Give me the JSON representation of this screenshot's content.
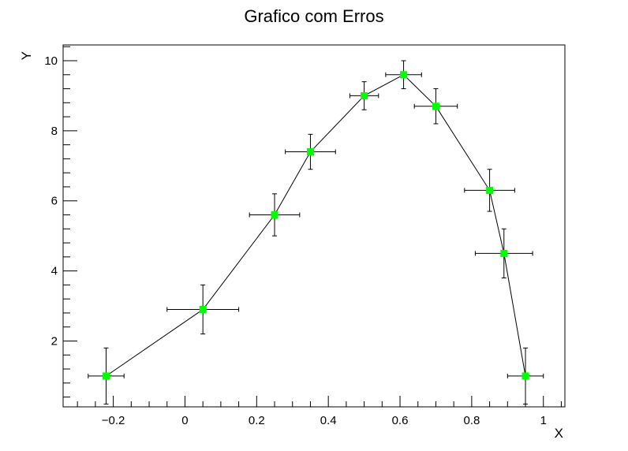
{
  "chart_data": {
    "type": "scatter",
    "title": "Grafico com Erros",
    "xlabel": "X",
    "ylabel": "Y",
    "xlim": [
      -0.34,
      1.06
    ],
    "ylim": [
      0.12,
      10.45
    ],
    "grid": false,
    "connected": true,
    "marker_color": "#00ff00",
    "line_color": "#000000",
    "x_ticks": [
      {
        "value": -0.2,
        "label": "−0.2"
      },
      {
        "value": 0,
        "label": "0"
      },
      {
        "value": 0.2,
        "label": "0.2"
      },
      {
        "value": 0.4,
        "label": "0.4"
      },
      {
        "value": 0.6,
        "label": "0.6"
      },
      {
        "value": 0.8,
        "label": "0.8"
      },
      {
        "value": 1,
        "label": "1"
      }
    ],
    "y_ticks": [
      {
        "value": 2,
        "label": "2"
      },
      {
        "value": 4,
        "label": "4"
      },
      {
        "value": 6,
        "label": "6"
      },
      {
        "value": 8,
        "label": "8"
      },
      {
        "value": 10,
        "label": "10"
      }
    ],
    "series": [
      {
        "points": [
          {
            "x": -0.22,
            "y": 1.0,
            "ex": 0.05,
            "ey": 0.8
          },
          {
            "x": 0.05,
            "y": 2.9,
            "ex": 0.1,
            "ey": 0.7
          },
          {
            "x": 0.25,
            "y": 5.6,
            "ex": 0.07,
            "ey": 0.6
          },
          {
            "x": 0.35,
            "y": 7.4,
            "ex": 0.07,
            "ey": 0.5
          },
          {
            "x": 0.5,
            "y": 9.0,
            "ex": 0.04,
            "ey": 0.4
          },
          {
            "x": 0.61,
            "y": 9.6,
            "ex": 0.05,
            "ey": 0.4
          },
          {
            "x": 0.7,
            "y": 8.7,
            "ex": 0.06,
            "ey": 0.5
          },
          {
            "x": 0.85,
            "y": 6.3,
            "ex": 0.07,
            "ey": 0.6
          },
          {
            "x": 0.89,
            "y": 4.5,
            "ex": 0.08,
            "ey": 0.7
          },
          {
            "x": 0.95,
            "y": 1.0,
            "ex": 0.05,
            "ey": 0.8
          }
        ]
      }
    ]
  }
}
